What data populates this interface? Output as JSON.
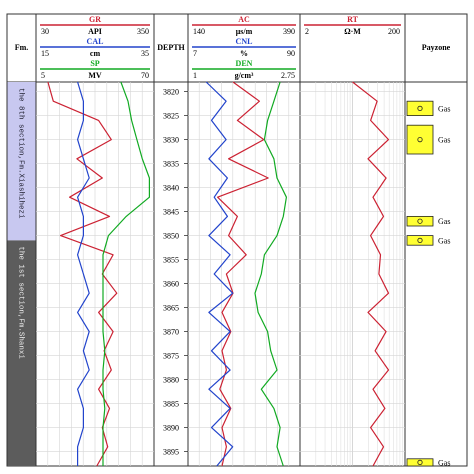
{
  "header": {
    "fm_label": "Fm.",
    "depth_label": "DEPTH",
    "payzone_label": "Payzone"
  },
  "track1_scales": [
    {
      "name": "GR",
      "unit": "API",
      "min": "30",
      "max": "350",
      "color": "#cc2233"
    },
    {
      "name": "CAL",
      "unit": "cm",
      "min": "15",
      "max": "35",
      "color": "#2244cc"
    },
    {
      "name": "SP",
      "unit": "MV",
      "min": "5",
      "max": "70",
      "color": "#11aa22"
    }
  ],
  "track2_scales": [
    {
      "name": "AC",
      "unit": "μs/m",
      "min": "140",
      "max": "390",
      "color": "#cc2233"
    },
    {
      "name": "CNL",
      "unit": "%",
      "min": "7",
      "max": "90",
      "color": "#2244cc"
    },
    {
      "name": "DEN",
      "unit": "g/cm³",
      "min": "1",
      "max": "2.75",
      "color": "#11aa22"
    }
  ],
  "track3_scales": [
    {
      "name": "RT",
      "unit": "Ω·M",
      "min": "2",
      "max": "200",
      "color": "#cc2233"
    }
  ],
  "formations": [
    {
      "label": "the 8th section,Fm.Xiashihezi",
      "color": "#c8c8f0"
    },
    {
      "label": "the 1st section,Fm.Shanxi",
      "color": "#5c5c5c"
    }
  ],
  "payzones": [
    {
      "label": "Gas",
      "top": 3822,
      "bottom": 3825
    },
    {
      "label": "Gas",
      "top": 3827,
      "bottom": 3833
    },
    {
      "label": "Gas",
      "top": 3846,
      "bottom": 3848
    },
    {
      "label": "Gas",
      "top": 3850,
      "bottom": 3852
    },
    {
      "label": "Gas",
      "top": 3896.5,
      "bottom": 3898
    }
  ],
  "chart_data": {
    "type": "line",
    "title": "",
    "ylabel": "DEPTH",
    "ylim": [
      3818,
      3898
    ],
    "depth_ticks": [
      3820,
      3825,
      3830,
      3835,
      3840,
      3845,
      3850,
      3855,
      3860,
      3865,
      3870,
      3875,
      3880,
      3885,
      3890,
      3895
    ],
    "depth": [
      3818,
      3822,
      3826,
      3830,
      3834,
      3838,
      3842,
      3846,
      3850,
      3854,
      3858,
      3862,
      3866,
      3870,
      3874,
      3878,
      3882,
      3886,
      3890,
      3894,
      3898
    ],
    "series": [
      {
        "name": "GR",
        "unit": "API",
        "xlim": [
          30,
          350
        ],
        "color": "#cc2233",
        "values": [
          60,
          75,
          200,
          235,
          140,
          210,
          120,
          230,
          95,
          240,
          210,
          250,
          200,
          240,
          215,
          235,
          200,
          230,
          210,
          225,
          195
        ]
      },
      {
        "name": "CAL",
        "unit": "cm",
        "xlim": [
          15,
          35
        ],
        "color": "#2244cc",
        "values": [
          22,
          23,
          23,
          22,
          23,
          24,
          22,
          23,
          23,
          22,
          23,
          24,
          22,
          24,
          23,
          24,
          22,
          23,
          23,
          22,
          22
        ]
      },
      {
        "name": "SP",
        "unit": "MV",
        "xlim": [
          5,
          70
        ],
        "color": "#11aa22",
        "values": [
          52,
          56,
          58,
          61,
          64,
          68,
          68,
          55,
          45,
          42,
          42,
          42,
          42,
          42,
          43,
          42,
          42,
          43,
          42,
          42,
          42
        ]
      },
      {
        "name": "AC",
        "unit": "μs/m",
        "xlim": [
          140,
          390
        ],
        "color": "#cc2233",
        "values": [
          240,
          300,
          250,
          310,
          230,
          320,
          205,
          250,
          230,
          270,
          225,
          240,
          215,
          235,
          215,
          225,
          210,
          235,
          215,
          225,
          215
        ]
      },
      {
        "name": "CNL",
        "unit": "%",
        "xlim": [
          7,
          90
        ],
        "color": "#2244cc",
        "values": [
          20,
          35,
          24,
          35,
          22,
          36,
          26,
          36,
          22,
          38,
          26,
          40,
          22,
          38,
          24,
          38,
          22,
          38,
          24,
          40,
          28
        ]
      },
      {
        "name": "DEN",
        "unit": "g/cm³",
        "xlim": [
          1,
          2.75
        ],
        "color": "#11aa22",
        "values": [
          2.45,
          2.35,
          2.25,
          2.2,
          2.35,
          2.4,
          2.55,
          2.5,
          2.4,
          2.2,
          2.15,
          2.05,
          2.1,
          2.25,
          2.3,
          2.4,
          2.15,
          2.35,
          2.45,
          2.4,
          2.5
        ]
      },
      {
        "name": "RT",
        "unit": "Ω·M",
        "xlim": [
          2,
          200
        ],
        "color": "#cc2233",
        "values": [
          20,
          60,
          45,
          100,
          40,
          90,
          50,
          80,
          45,
          70,
          65,
          100,
          40,
          90,
          55,
          100,
          50,
          85,
          45,
          80,
          50
        ]
      }
    ]
  }
}
